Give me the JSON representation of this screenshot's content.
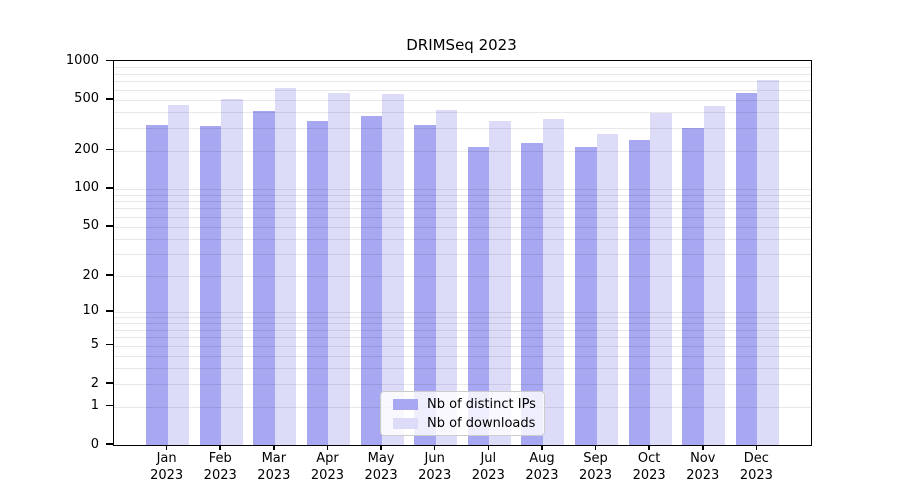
{
  "chart_data": {
    "type": "bar",
    "title": "DRIMSeq 2023",
    "categories": [
      "Jan 2023",
      "Feb 2023",
      "Mar 2023",
      "Apr 2023",
      "May 2023",
      "Jun 2023",
      "Jul 2023",
      "Aug 2023",
      "Sep 2023",
      "Oct 2023",
      "Nov 2023",
      "Dec 2023"
    ],
    "series": [
      {
        "name": "Nb of distinct IPs",
        "color": "#a8a8f2",
        "values": [
          316,
          312,
          408,
          344,
          375,
          320,
          214,
          232,
          214,
          243,
          300,
          568
        ]
      },
      {
        "name": "Nb of downloads",
        "color": "#dcdcf8",
        "values": [
          460,
          510,
          625,
          568,
          554,
          418,
          343,
          357,
          272,
          396,
          445,
          720
        ]
      }
    ],
    "xlabel": "",
    "ylabel": "",
    "yscale": "log1p",
    "ylim": [
      0,
      1000
    ],
    "yticks": [
      1000,
      500,
      200,
      100,
      50,
      20,
      10,
      5,
      2,
      1,
      0
    ],
    "grid": "horizontal gridlines at log minor positions, drawn over bars",
    "legend_position": "lower center"
  },
  "colors": {
    "background": "#ffffff",
    "axis": "#000000",
    "text": "#000000",
    "gridline": "#e9e9e9",
    "series_ip": "#a8a8f2",
    "series_downloads": "#dcdcf8",
    "legend_border": "#cccccc"
  }
}
